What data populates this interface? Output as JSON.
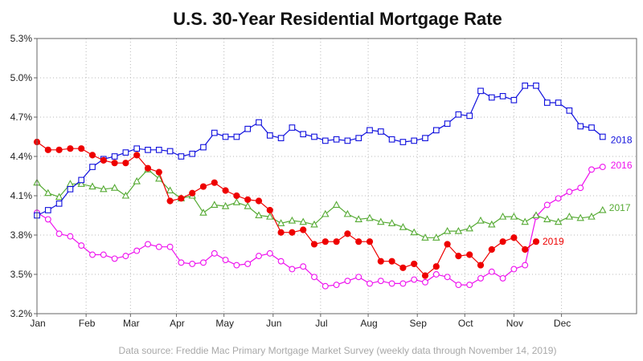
{
  "chart_data": {
    "type": "line",
    "title": "U.S. 30-Year Residential Mortgage Rate",
    "footnote": "Data source: Freddie Mac Primary Mortgage Market Survey (weekly data through November 14, 2019)",
    "xlabel": "",
    "ylabel": "",
    "x_ticks": [
      "Jan",
      "Feb",
      "Mar",
      "Apr",
      "May",
      "Jun",
      "Jul",
      "Aug",
      "Sep",
      "Oct",
      "Nov",
      "Dec"
    ],
    "y_ticks": [
      "3.2%",
      "3.5%",
      "3.8%",
      "4.1%",
      "4.4%",
      "4.7%",
      "5.0%",
      "5.3%"
    ],
    "xlim": [
      1,
      53
    ],
    "ylim": [
      3.2,
      5.3
    ],
    "grid": true,
    "x_unit": "week of year",
    "series": [
      {
        "name": "2018",
        "color": "#1010dd",
        "marker": "square",
        "x": [
          1,
          2,
          3,
          4,
          5,
          6,
          7,
          8,
          9,
          10,
          11,
          12,
          13,
          14,
          15,
          16,
          17,
          18,
          19,
          20,
          21,
          22,
          23,
          24,
          25,
          26,
          27,
          28,
          29,
          30,
          31,
          32,
          33,
          34,
          35,
          36,
          37,
          38,
          39,
          40,
          41,
          42,
          43,
          44,
          45,
          46,
          47,
          48,
          49,
          50,
          51,
          52
        ],
        "values": [
          3.95,
          3.99,
          4.04,
          4.15,
          4.22,
          4.32,
          4.38,
          4.4,
          4.43,
          4.46,
          4.45,
          4.45,
          4.44,
          4.4,
          4.42,
          4.47,
          4.58,
          4.55,
          4.55,
          4.61,
          4.66,
          4.56,
          4.54,
          4.62,
          4.57,
          4.55,
          4.52,
          4.53,
          4.52,
          4.54,
          4.6,
          4.59,
          4.53,
          4.51,
          4.52,
          4.54,
          4.6,
          4.65,
          4.72,
          4.71,
          4.9,
          4.85,
          4.86,
          4.83,
          4.94,
          4.94,
          4.81,
          4.81,
          4.75,
          4.63,
          4.62,
          4.55
        ]
      },
      {
        "name": "2016",
        "color": "#ee10ee",
        "marker": "circle",
        "x": [
          1,
          2,
          3,
          4,
          5,
          6,
          7,
          8,
          9,
          10,
          11,
          12,
          13,
          14,
          15,
          16,
          17,
          18,
          19,
          20,
          21,
          22,
          23,
          24,
          25,
          26,
          27,
          28,
          29,
          30,
          31,
          32,
          33,
          34,
          35,
          36,
          37,
          38,
          39,
          40,
          41,
          42,
          43,
          44,
          45,
          46,
          47,
          48,
          49,
          50,
          51,
          52
        ],
        "values": [
          3.97,
          3.92,
          3.81,
          3.79,
          3.72,
          3.65,
          3.65,
          3.62,
          3.64,
          3.68,
          3.73,
          3.71,
          3.71,
          3.59,
          3.58,
          3.59,
          3.66,
          3.61,
          3.57,
          3.58,
          3.64,
          3.66,
          3.6,
          3.54,
          3.56,
          3.48,
          3.41,
          3.42,
          3.45,
          3.48,
          3.43,
          3.45,
          3.43,
          3.43,
          3.46,
          3.44,
          3.5,
          3.48,
          3.42,
          3.42,
          3.47,
          3.52,
          3.47,
          3.54,
          3.57,
          3.94,
          4.03,
          4.08,
          4.13,
          4.16,
          4.3,
          4.32
        ]
      },
      {
        "name": "2017",
        "color": "#55aa33",
        "marker": "triangle",
        "x": [
          1,
          2,
          3,
          4,
          5,
          6,
          7,
          8,
          9,
          10,
          11,
          12,
          13,
          14,
          15,
          16,
          17,
          18,
          19,
          20,
          21,
          22,
          23,
          24,
          25,
          26,
          27,
          28,
          29,
          30,
          31,
          32,
          33,
          34,
          35,
          36,
          37,
          38,
          39,
          40,
          41,
          42,
          43,
          44,
          45,
          46,
          47,
          48,
          49,
          50,
          51,
          52
        ],
        "values": [
          4.2,
          4.12,
          4.09,
          4.19,
          4.19,
          4.17,
          4.15,
          4.16,
          4.1,
          4.21,
          4.3,
          4.23,
          4.14,
          4.08,
          4.1,
          3.97,
          4.03,
          4.02,
          4.05,
          4.02,
          3.95,
          3.94,
          3.89,
          3.91,
          3.9,
          3.88,
          3.96,
          4.03,
          3.96,
          3.92,
          3.93,
          3.9,
          3.89,
          3.86,
          3.82,
          3.78,
          3.78,
          3.83,
          3.83,
          3.85,
          3.91,
          3.88,
          3.94,
          3.94,
          3.9,
          3.95,
          3.92,
          3.9,
          3.94,
          3.93,
          3.94,
          3.99
        ]
      },
      {
        "name": "2019",
        "color": "#ee0000",
        "marker": "filled-circle",
        "x": [
          1,
          2,
          3,
          4,
          5,
          6,
          7,
          8,
          9,
          10,
          11,
          12,
          13,
          14,
          15,
          16,
          17,
          18,
          19,
          20,
          21,
          22,
          23,
          24,
          25,
          26,
          27,
          28,
          29,
          30,
          31,
          32,
          33,
          34,
          35,
          36,
          37,
          38,
          39,
          40,
          41,
          42,
          43,
          44,
          45,
          46
        ],
        "values": [
          4.51,
          4.45,
          4.45,
          4.46,
          4.46,
          4.41,
          4.37,
          4.35,
          4.35,
          4.41,
          4.31,
          4.28,
          4.06,
          4.08,
          4.12,
          4.17,
          4.2,
          4.14,
          4.1,
          4.07,
          4.06,
          3.99,
          3.82,
          3.82,
          3.84,
          3.73,
          3.75,
          3.75,
          3.81,
          3.75,
          3.75,
          3.6,
          3.6,
          3.55,
          3.58,
          3.49,
          3.56,
          3.73,
          3.64,
          3.65,
          3.57,
          3.69,
          3.75,
          3.78,
          3.69,
          3.75
        ]
      }
    ]
  }
}
